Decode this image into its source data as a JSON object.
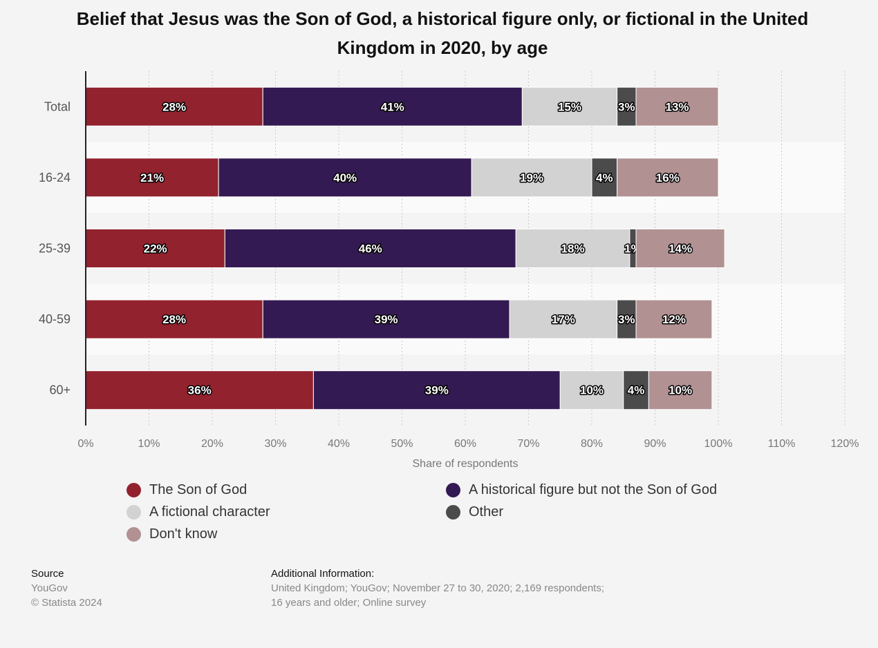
{
  "chart_data": {
    "type": "bar",
    "orientation": "horizontal",
    "stacked": true,
    "title": "Belief that Jesus was the Son of God, a historical figure only, or fictional in the United Kingdom in 2020, by age",
    "xlabel": "Share of respondents",
    "ylabel": "",
    "xlim": [
      0,
      120
    ],
    "x_ticks": [
      "0%",
      "10%",
      "20%",
      "30%",
      "40%",
      "50%",
      "60%",
      "70%",
      "80%",
      "90%",
      "100%",
      "110%",
      "120%"
    ],
    "categories": [
      "Total",
      "16-24",
      "25-39",
      "40-59",
      "60+"
    ],
    "grid": true,
    "legend_position": "bottom",
    "series": [
      {
        "name": "The Son of God",
        "color": "#92222e",
        "values": [
          28,
          21,
          22,
          28,
          36
        ],
        "labels": [
          "28%",
          "21%",
          "22%",
          "28%",
          "36%"
        ]
      },
      {
        "name": "A historical figure but not the Son of God",
        "color": "#341a52",
        "values": [
          41,
          40,
          46,
          39,
          39
        ],
        "labels": [
          "41%",
          "40%",
          "46%",
          "39%",
          "39%"
        ]
      },
      {
        "name": "A fictional character",
        "color": "#d2d2d2",
        "values": [
          15,
          19,
          18,
          17,
          10
        ],
        "labels": [
          "15%",
          "19%",
          "18%",
          "17%",
          "10%"
        ]
      },
      {
        "name": "Other",
        "color": "#4b4b4b",
        "values": [
          3,
          4,
          1,
          3,
          4
        ],
        "labels": [
          "3%",
          "4%",
          "1%",
          "3%",
          "4%"
        ]
      },
      {
        "name": "Don't know",
        "color": "#b29193",
        "values": [
          13,
          16,
          14,
          12,
          10
        ],
        "labels": [
          "13%",
          "16%",
          "14%",
          "12%",
          "10%"
        ]
      }
    ]
  },
  "footer": {
    "source_heading": "Source",
    "source_name": "YouGov",
    "copyright": "© Statista 2024",
    "additional_heading": "Additional Information:",
    "additional_line1": "United Kingdom; YouGov; November 27 to 30, 2020; 2,169 respondents;",
    "additional_line2": "16 years and older; Online survey"
  }
}
